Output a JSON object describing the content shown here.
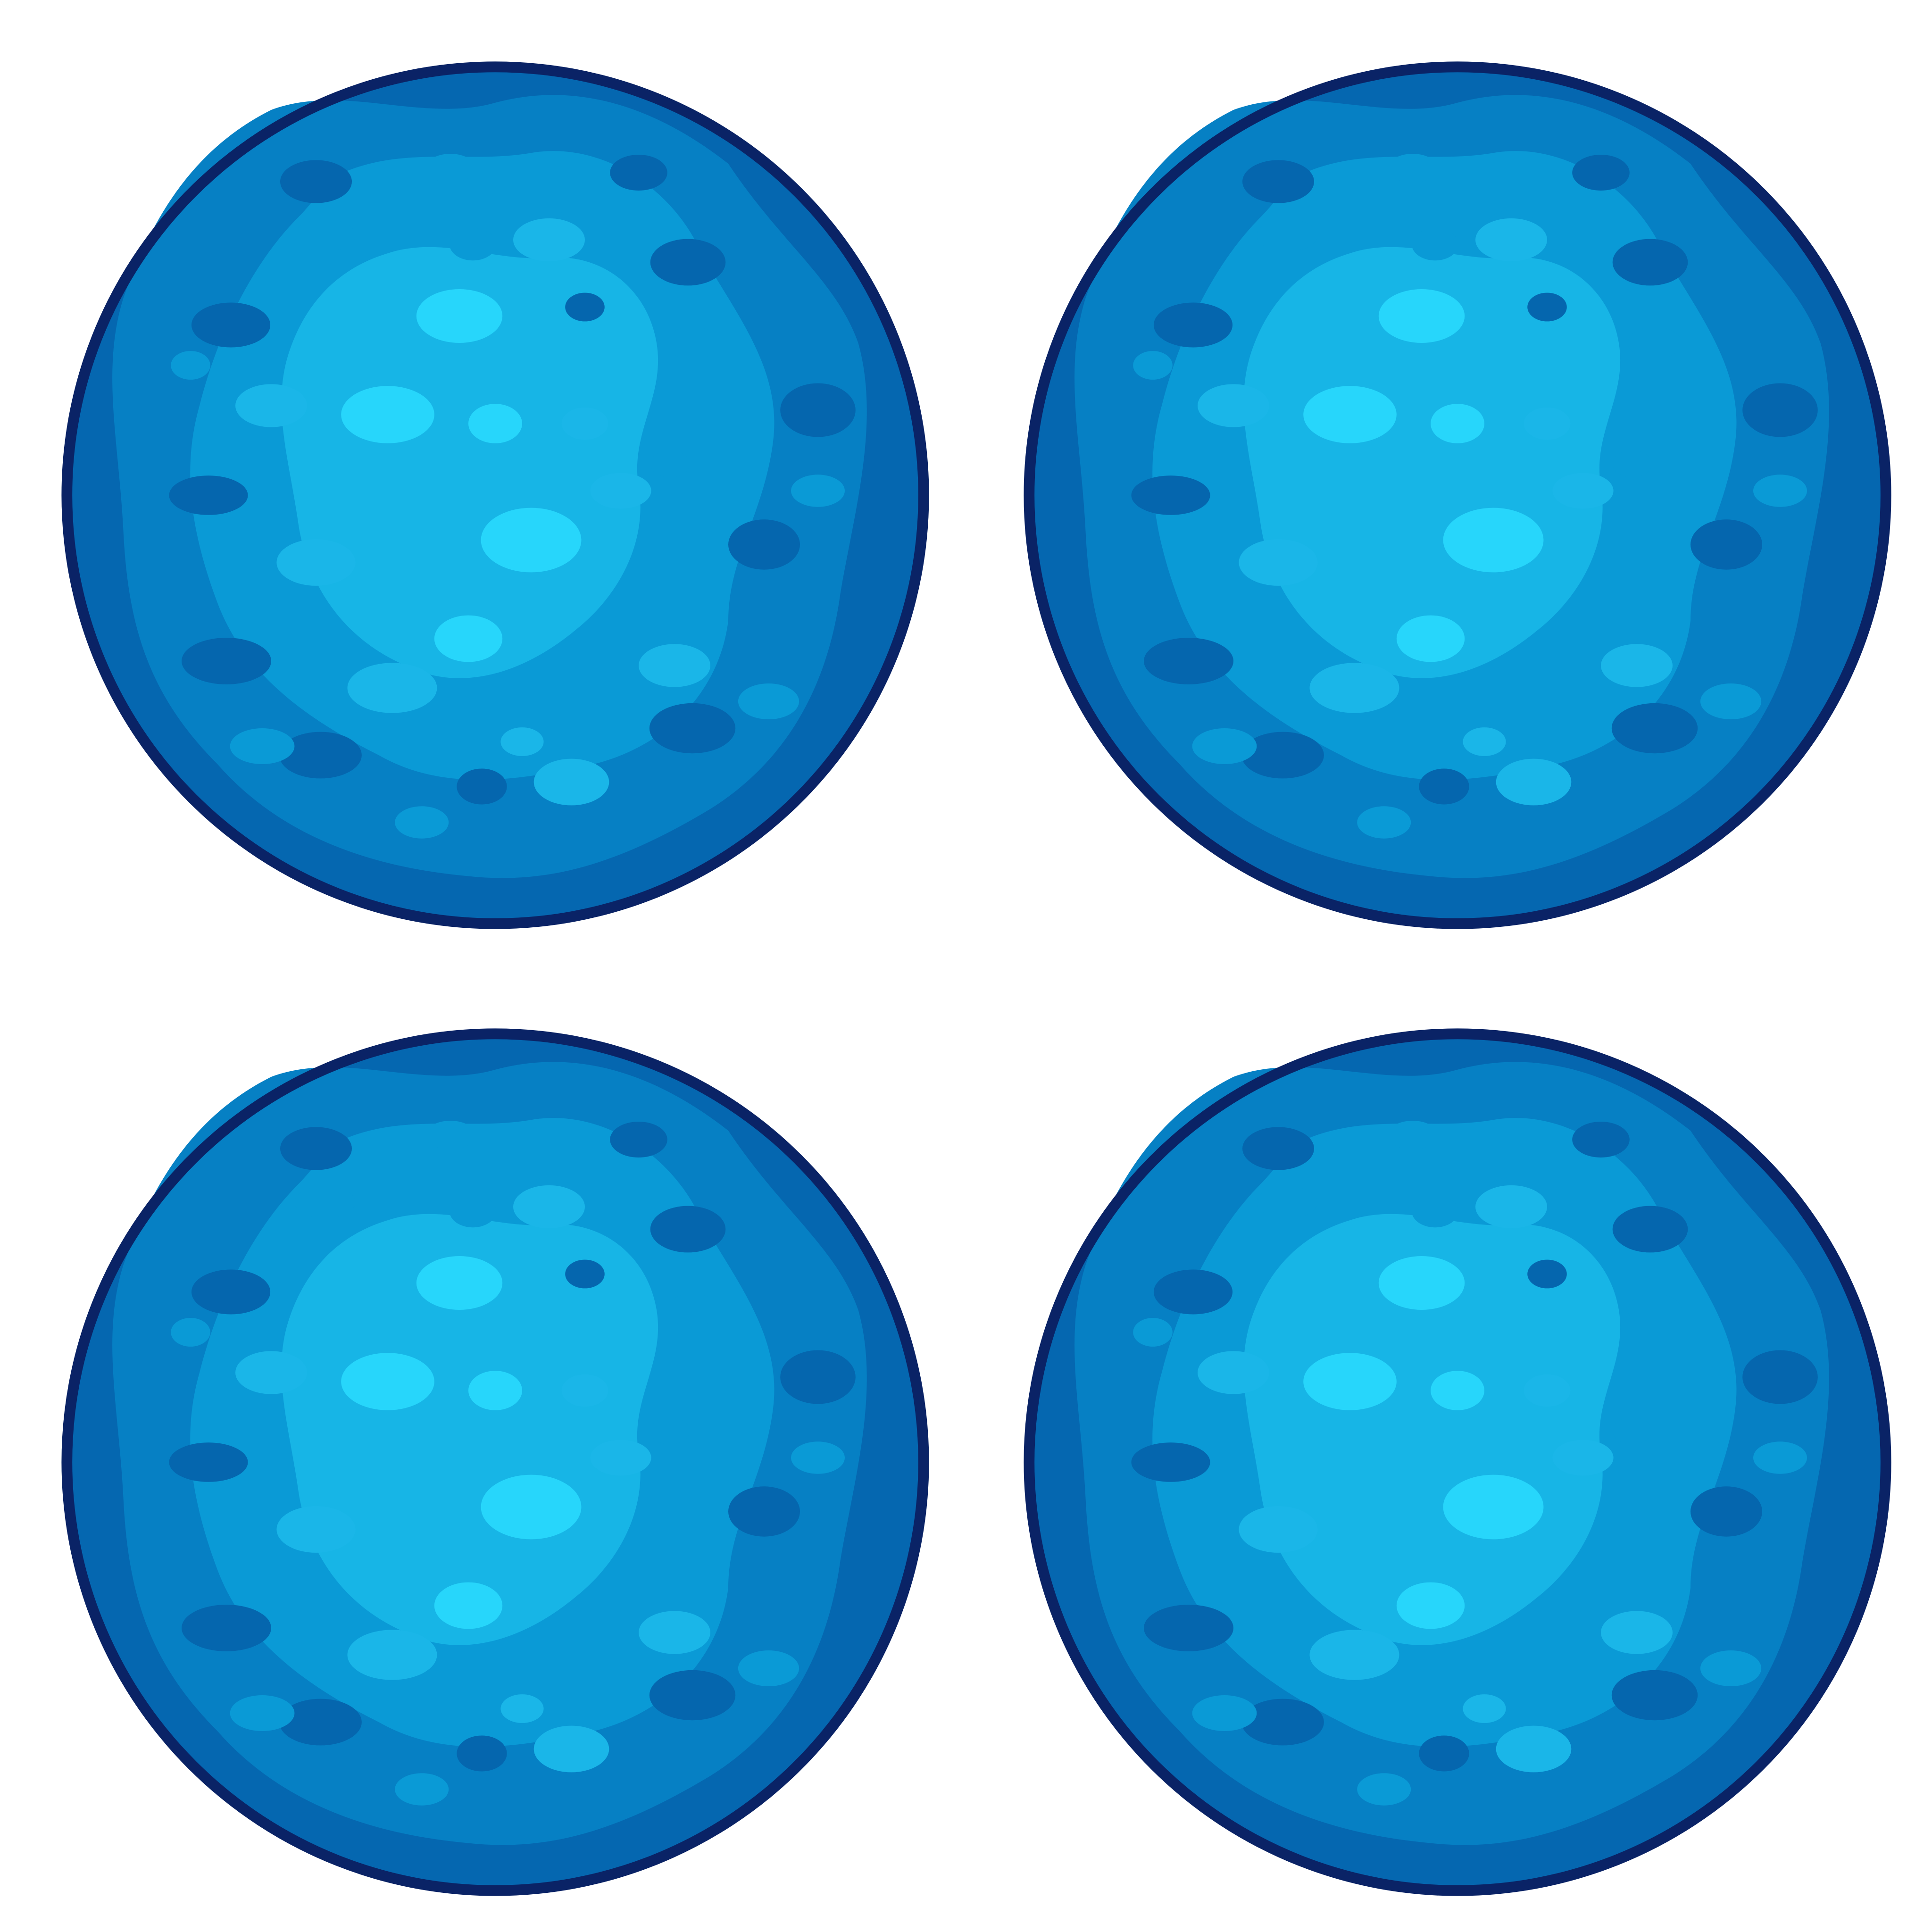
{
  "sheet": {
    "background": "#ffffff",
    "variants": [
      {
        "id": "planet-variant-1",
        "interactable": false
      },
      {
        "id": "planet-variant-2",
        "interactable": false
      },
      {
        "id": "planet-variant-3",
        "interactable": false
      },
      {
        "id": "planet-variant-4",
        "interactable": false
      }
    ]
  },
  "palette": {
    "outline": "#0a2366",
    "rim": "#0567b0",
    "band": "#0680c4",
    "mid": "#0a9ad6",
    "light": "#17b5e6",
    "highlight": "#27d6fb",
    "spot_dark": "#0566ae",
    "spot_mid": "#0a9ad6",
    "spot_light": "#1ab6e8"
  }
}
